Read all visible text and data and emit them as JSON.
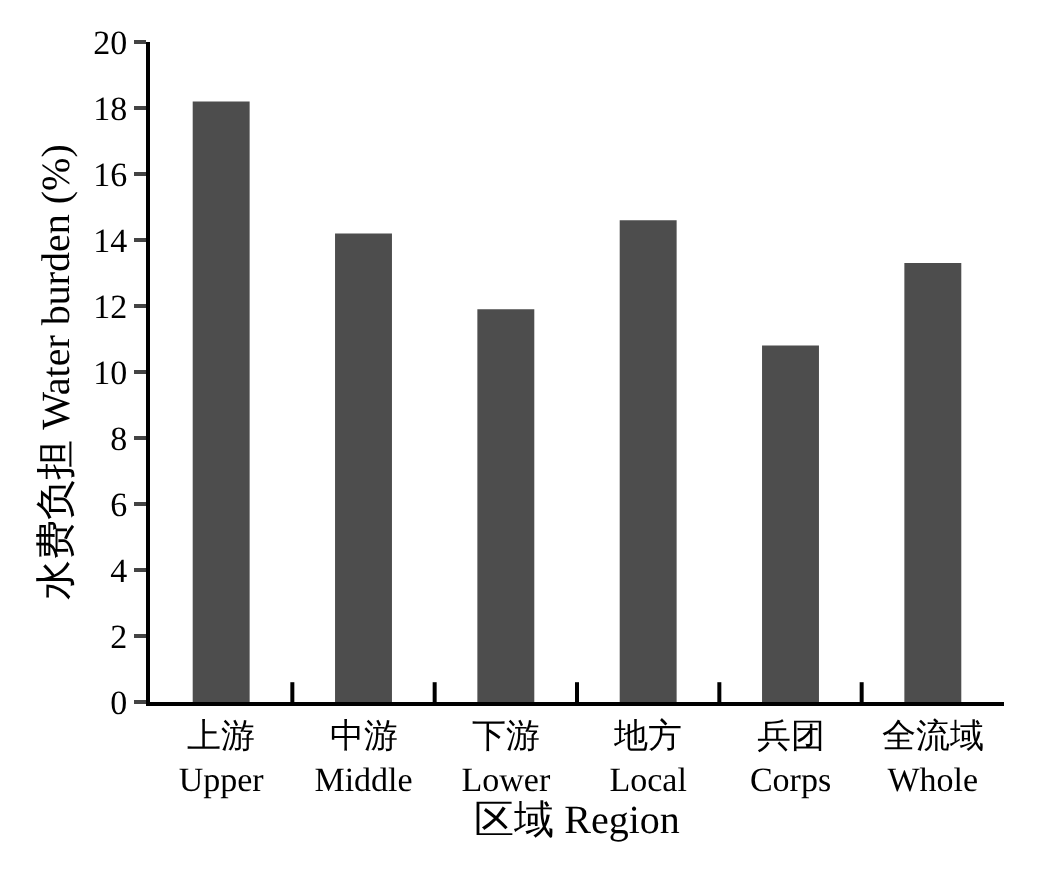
{
  "chart_data": {
    "type": "bar",
    "xlabel": "区域 Region",
    "ylabel": "水费负担 Water burden (%)",
    "categories": [
      "上游\nUpper",
      "中游\nMiddle",
      "下游\nLower",
      "地方\nLocal",
      "兵团\nCorps",
      "全流域\nWhole"
    ],
    "values": [
      18.2,
      14.2,
      11.9,
      14.6,
      10.8,
      13.3
    ],
    "color": "#4d4d4d",
    "ylim": [
      0,
      20
    ],
    "yticks": [
      0,
      2,
      4,
      6,
      8,
      10,
      12,
      14,
      16,
      18,
      20
    ]
  }
}
